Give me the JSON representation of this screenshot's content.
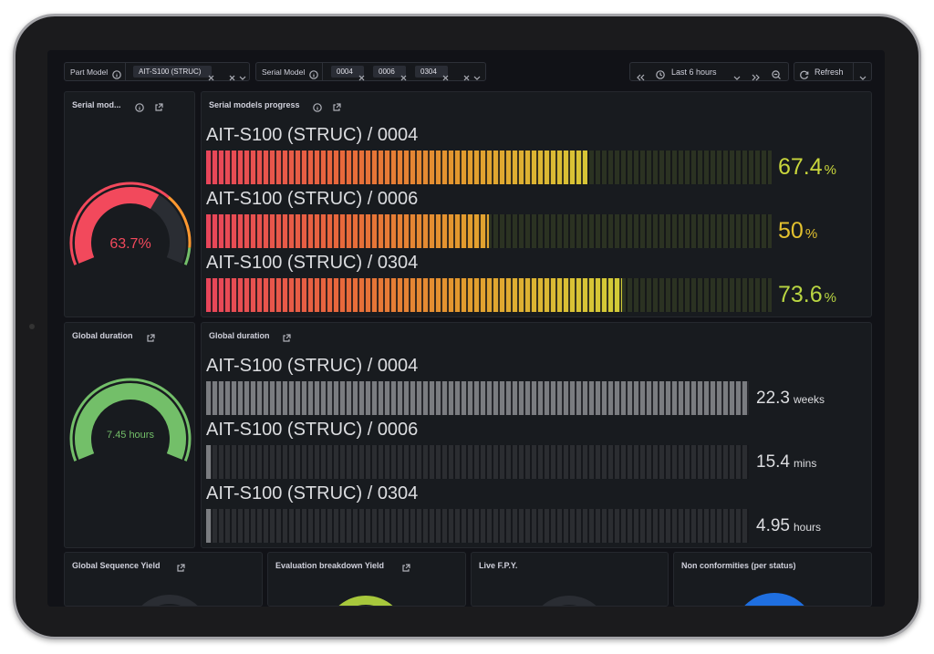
{
  "filters": {
    "part_model": {
      "label": "Part Model",
      "values": [
        "AIT-S100 (STRUC)"
      ]
    },
    "serial_model": {
      "label": "Serial Model",
      "values": [
        "0004",
        "0006",
        "0304"
      ]
    }
  },
  "time_range": "Last 6 hours",
  "refresh": "Refresh",
  "panels": {
    "serial_gauge": {
      "title": "Serial mod...",
      "value": 63.7,
      "unit": "%"
    },
    "progress": {
      "title": "Serial models progress",
      "rows": [
        {
          "label": "AIT-S100 (STRUC) / 0004",
          "value": 67.4,
          "unit": "%"
        },
        {
          "label": "AIT-S100 (STRUC) / 0006",
          "value": 50,
          "unit": "%"
        },
        {
          "label": "AIT-S100 (STRUC) / 0304",
          "value": 73.6,
          "unit": "%"
        }
      ]
    },
    "duration_gauge": {
      "title": "Global duration",
      "value": 7.45,
      "unit": "hours"
    },
    "duration": {
      "title": "Global duration",
      "rows": [
        {
          "label": "AIT-S100 (STRUC) / 0004",
          "value": 22.3,
          "unit": "weeks"
        },
        {
          "label": "AIT-S100 (STRUC) / 0006",
          "value": 15.4,
          "unit": "mins"
        },
        {
          "label": "AIT-S100 (STRUC) / 0304",
          "value": 4.95,
          "unit": "hours"
        }
      ]
    },
    "bottom": [
      "Global Sequence Yield",
      "Evaluation breakdown Yield",
      "Live F.P.Y.",
      "Non conformities (per status)"
    ]
  }
}
